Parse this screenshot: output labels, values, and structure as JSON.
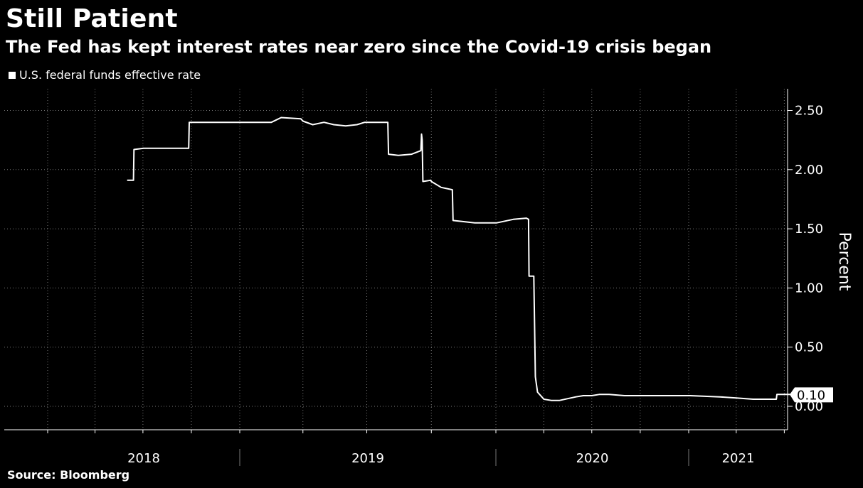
{
  "header": {
    "title": "Still Patient",
    "subtitle": "The Fed has kept interest rates near zero since the Covid-19 crisis began"
  },
  "footer": {
    "source": "Source: Bloomberg"
  },
  "colors": {
    "background": "#000000",
    "line": "#ffffff",
    "grid": "#777777"
  },
  "chart_data": {
    "type": "line",
    "title": "Still Patient",
    "subtitle": "The Fed has kept interest rates near zero since the Covid-19 crisis began",
    "ylabel": "Percent",
    "ylim": [
      -0.1,
      2.7
    ],
    "y_ticks": [
      0.0,
      0.5,
      1.0,
      1.5,
      2.0,
      2.5
    ],
    "y_tick_labels": [
      "0.00",
      "0.50",
      "1.00",
      "1.50",
      "2.00",
      "2.50"
    ],
    "x_year_labels": [
      "2018",
      "2019",
      "2020",
      "2021"
    ],
    "grid": true,
    "legend_position": "top-left",
    "last_value_label": "0.10",
    "series": [
      {
        "name": "U.S. federal funds effective rate",
        "x": [
          "2018-06-01",
          "2018-06-13",
          "2018-06-14",
          "2018-07-02",
          "2018-09-26",
          "2018-09-27",
          "2018-12-01",
          "2018-12-19",
          "2018-12-20",
          "2019-01-02",
          "2019-01-15",
          "2019-02-01",
          "2019-02-15",
          "2019-03-01",
          "2019-03-29",
          "2019-04-01",
          "2019-04-15",
          "2019-05-01",
          "2019-05-15",
          "2019-06-01",
          "2019-06-17",
          "2019-06-28",
          "2019-07-01",
          "2019-07-31",
          "2019-08-01",
          "2019-08-15",
          "2019-09-03",
          "2019-09-16",
          "2019-09-17",
          "2019-09-18",
          "2019-09-19",
          "2019-09-30",
          "2019-10-01",
          "2019-10-15",
          "2019-10-31",
          "2019-11-01",
          "2019-12-02",
          "2020-01-02",
          "2020-02-03",
          "2020-02-28",
          "2020-03-03",
          "2020-03-04",
          "2020-03-13",
          "2020-03-16",
          "2020-03-20",
          "2020-04-01",
          "2020-04-15",
          "2020-05-01",
          "2020-06-01",
          "2020-06-15",
          "2020-07-01",
          "2020-07-15",
          "2020-08-03",
          "2020-09-01",
          "2020-10-01",
          "2020-12-01",
          "2021-01-04",
          "2021-03-01",
          "2021-04-01",
          "2021-05-03",
          "2021-06-16",
          "2021-06-17",
          "2021-07-15"
        ],
        "values": [
          1.91,
          1.91,
          2.17,
          2.18,
          2.18,
          2.4,
          2.4,
          2.4,
          2.4,
          2.4,
          2.4,
          2.4,
          2.4,
          2.44,
          2.43,
          2.41,
          2.38,
          2.4,
          2.38,
          2.37,
          2.38,
          2.4,
          2.4,
          2.4,
          2.13,
          2.12,
          2.13,
          2.16,
          2.3,
          2.25,
          1.9,
          1.91,
          1.9,
          1.85,
          1.83,
          1.57,
          1.55,
          1.55,
          1.58,
          1.59,
          1.58,
          1.1,
          1.1,
          0.25,
          0.12,
          0.06,
          0.05,
          0.05,
          0.08,
          0.09,
          0.09,
          0.1,
          0.1,
          0.09,
          0.09,
          0.09,
          0.09,
          0.08,
          0.07,
          0.06,
          0.06,
          0.1,
          0.1
        ]
      }
    ]
  }
}
